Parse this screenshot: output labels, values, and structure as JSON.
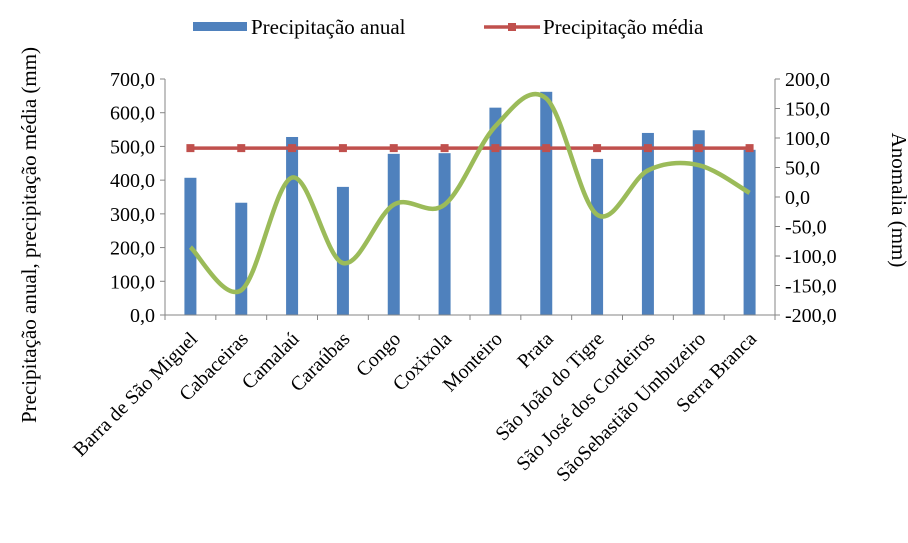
{
  "chart_data": {
    "type": "bar",
    "categories": [
      "Barra de São Miguel",
      "Cabaceiras",
      "Camalaú",
      "Caraúbas",
      "Congo",
      "Coxixola",
      "Monteiro",
      "Prata",
      "São João do Tigre",
      "São José dos Cordeiros",
      "SãoSebastião Umbuzeiro",
      "Serra Branca"
    ],
    "series": [
      {
        "name": "Precipitação anual",
        "type": "bar",
        "axis": "left",
        "color": "#4F81BD",
        "values": [
          407,
          333,
          528,
          380,
          478,
          480,
          615,
          662,
          463,
          540,
          548,
          490
        ]
      },
      {
        "name": "Precipitação média",
        "type": "line",
        "axis": "left",
        "color": "#C0504D",
        "values": [
          495,
          495,
          495,
          495,
          495,
          495,
          495,
          495,
          495,
          495,
          495,
          495
        ]
      },
      {
        "name": "",
        "type": "line",
        "axis": "right",
        "color": "#9BBB59",
        "smooth": true,
        "values": [
          -85,
          -158,
          33,
          -112,
          -13,
          -13,
          120,
          167,
          -30,
          45,
          54,
          7
        ]
      }
    ],
    "ylabel": "Precipitação anual, precipitação média (mm)",
    "y2label": "Anomalia (mm)",
    "ylim": [
      0,
      700
    ],
    "y2lim": [
      -200,
      200
    ],
    "yticks": [
      "0,0",
      "100,0",
      "200,0",
      "300,0",
      "400,0",
      "500,0",
      "600,0",
      "700,0"
    ],
    "y2ticks": [
      "-200,0",
      "-150,0",
      "-100,0",
      "-50,0",
      "0,0",
      "50,0",
      "100,0",
      "150,0",
      "200,0"
    ],
    "legend_position": "top"
  }
}
